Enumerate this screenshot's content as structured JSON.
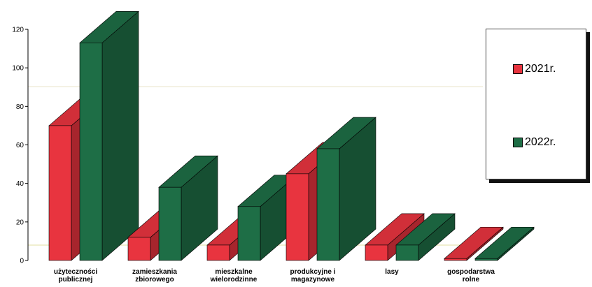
{
  "chart_data": {
    "type": "bar",
    "categories": [
      [
        "użyteczności",
        "publicznej"
      ],
      [
        "zamieszkania",
        "zbiorowego"
      ],
      [
        "mieszkalne",
        "wielorodzinne"
      ],
      [
        "produkcyjne i",
        "magazynowe"
      ],
      [
        "lasy"
      ],
      [
        "gospodarstwa",
        "rolne"
      ]
    ],
    "series": [
      {
        "name": "2021r.",
        "color": "#e8343f",
        "values": [
          70,
          12,
          8,
          45,
          8,
          1
        ]
      },
      {
        "name": "2022r.",
        "color": "#1e6e46",
        "values": [
          113,
          38,
          28,
          58,
          8,
          1
        ]
      }
    ],
    "yticks": [
      "0",
      "20",
      "40",
      "60",
      "80",
      "100",
      "120"
    ],
    "ylim": [
      0,
      120
    ],
    "legend_position": "right",
    "grid": false
  }
}
